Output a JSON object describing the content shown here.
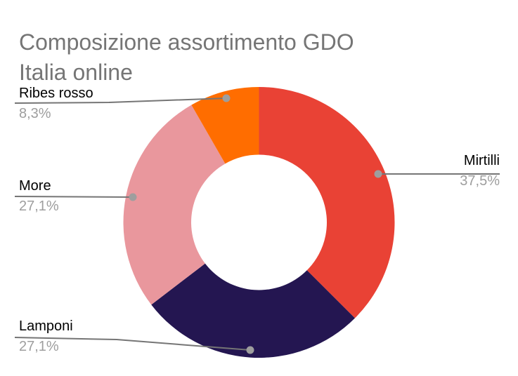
{
  "chart_data": {
    "type": "pie",
    "subtype": "donut",
    "title": "Composizione assortimento GDO Italia online",
    "labels": [
      "Mirtilli",
      "Lamponi",
      "More",
      "Ribes rosso"
    ],
    "values": [
      37.5,
      27.1,
      27.1,
      8.3
    ],
    "value_labels": [
      "37,5%",
      "27,1%",
      "27,1%",
      "8,3%"
    ],
    "colors": [
      "#E94235",
      "#241651",
      "#E9979D",
      "#FF6D00"
    ],
    "hole_ratio": 0.5,
    "start_angle_deg": 0,
    "direction": "clockwise",
    "legend_position": "labeled-callouts",
    "title_color": "#757575",
    "label_color": "#000000",
    "value_color": "#9E9E9E",
    "leader_line_color": "#757575",
    "leader_dot_color": "#9E9E9E",
    "background_color": "#FFFFFF"
  }
}
